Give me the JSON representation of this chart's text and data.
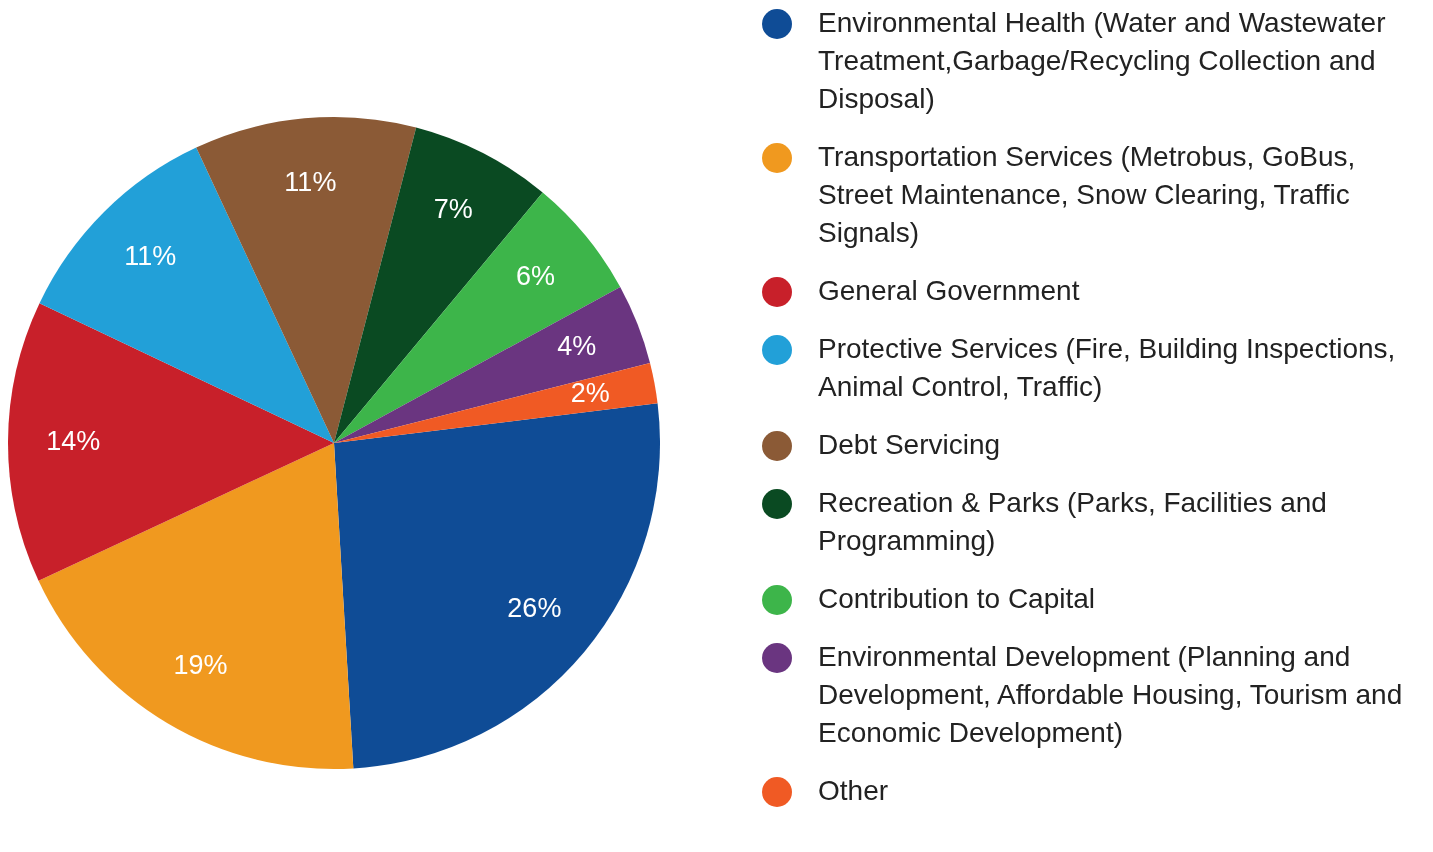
{
  "chart_data": {
    "type": "pie",
    "categories": [
      "Environmental Health (Water and Wastewater Treatment,Garbage/Recycling Collection and Disposal)",
      "Transportation Services (Metrobus, GoBus, Street Maintenance, Snow Clearing, Traffic Signals)",
      "General Government",
      "Protective Services (Fire, Building Inspections, Animal Control, Traffic)",
      "Debt Servicing",
      "Recreation & Parks (Parks, Facilities and Programming)",
      "Contribution to Capital",
      "Environmental Development (Planning and Development, Affordable Housing, Tourism and Economic Development)",
      "Other"
    ],
    "values": [
      26,
      19,
      14,
      11,
      11,
      7,
      6,
      4,
      2
    ],
    "value_labels": [
      "26%",
      "19%",
      "14%",
      "11%",
      "11%",
      "7%",
      "6%",
      "4%",
      "2%"
    ],
    "colors": [
      "#0f4c96",
      "#f0991f",
      "#c8202a",
      "#22a0d8",
      "#8b5a36",
      "#0a4a22",
      "#3db54a",
      "#6a3580",
      "#f05a24"
    ],
    "legend": "right"
  }
}
